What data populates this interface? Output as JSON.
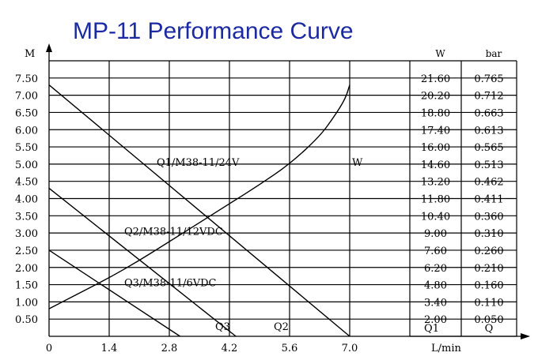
{
  "chart_data": {
    "type": "line",
    "title": "MP-11 Performance Curve",
    "colors": {
      "title": "#1b2aa3",
      "ink": "#000000",
      "background": "#ffffff"
    },
    "y_axis": {
      "label": "M",
      "ticks": [
        "7.50",
        "7.00",
        "6.50",
        "6.00",
        "5.50",
        "5.00",
        "4.50",
        "4.00",
        "3.50",
        "3.00",
        "2.50",
        "2.00",
        "1.50",
        "1.00",
        "0.50"
      ],
      "ylim": [
        0,
        8
      ]
    },
    "x_axis": {
      "label": "L/min",
      "ticks": [
        "0",
        "1.4",
        "2.8",
        "4.2",
        "5.6",
        "7.0"
      ],
      "xlim": [
        0,
        8.4
      ]
    },
    "table": {
      "col_headers": [
        "W",
        "bar"
      ],
      "footer": [
        "Q1",
        "Q"
      ],
      "rows": [
        [
          "21.60",
          "0.765"
        ],
        [
          "20.20",
          "0.712"
        ],
        [
          "18.80",
          "0.663"
        ],
        [
          "17.40",
          "0.613"
        ],
        [
          "16.00",
          "0.565"
        ],
        [
          "14.60",
          "0.513"
        ],
        [
          "13.20",
          "0.462"
        ],
        [
          "11.80",
          "0.411"
        ],
        [
          "10.40",
          "0.360"
        ],
        [
          "9.00",
          "0.310"
        ],
        [
          "7.60",
          "0.260"
        ],
        [
          "6.20",
          "0.210"
        ],
        [
          "4.80",
          "0.160"
        ],
        [
          "3.40",
          "0.110"
        ],
        [
          "2.00",
          "0.050"
        ]
      ]
    },
    "series": [
      {
        "name": "Q1/M38-11/24V",
        "kind": "head",
        "points": [
          [
            0,
            7.3
          ],
          [
            7.0,
            0
          ]
        ]
      },
      {
        "name": "Q2/M38-11/12VDC",
        "kind": "head",
        "points": [
          [
            0,
            4.3
          ],
          [
            4.35,
            0
          ]
        ]
      },
      {
        "name": "Q3/M38-11/6VDC",
        "kind": "head",
        "points": [
          [
            0,
            2.5
          ],
          [
            3.05,
            0
          ]
        ]
      },
      {
        "name": "W",
        "kind": "power",
        "points": [
          [
            0,
            0.8
          ],
          [
            0.7,
            1.25
          ],
          [
            1.4,
            1.7
          ],
          [
            2.1,
            2.2
          ],
          [
            2.8,
            2.75
          ],
          [
            3.5,
            3.3
          ],
          [
            4.2,
            3.85
          ],
          [
            4.9,
            4.4
          ],
          [
            5.6,
            5.0
          ],
          [
            6.3,
            5.8
          ],
          [
            6.65,
            6.4
          ],
          [
            6.9,
            6.9
          ],
          [
            7.0,
            7.3
          ]
        ]
      }
    ],
    "end_labels": {
      "Q3": "Q3",
      "Q2": "Q2"
    }
  }
}
